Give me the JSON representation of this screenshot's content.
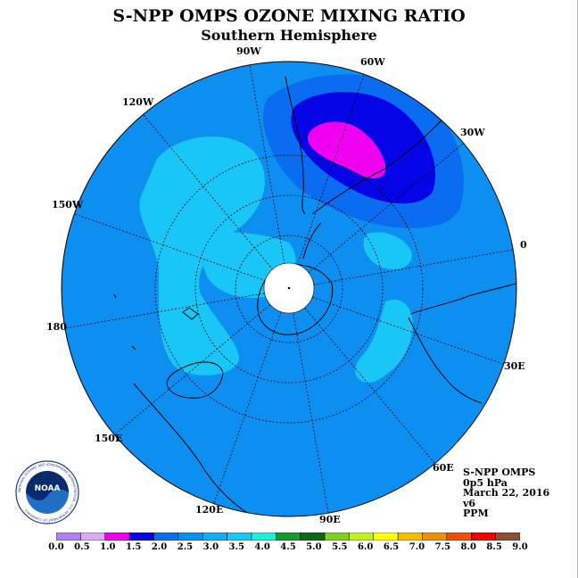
{
  "title": "S-NPP OMPS OZONE MIXING RATIO",
  "subtitle": "Southern Hemisphere",
  "longitude_labels": [
    "0",
    "30E",
    "60E",
    "90E",
    "120E",
    "150E",
    "180",
    "150W",
    "120W",
    "90W",
    "60W",
    "30W"
  ],
  "info": {
    "instrument": "S-NPP OMPS",
    "pressure": "0p5 hPa",
    "date": "March 22, 2016",
    "version": "v6",
    "units": "PPM"
  },
  "logo": {
    "text": "NOAA",
    "ring_text": "NATIONAL OCEANIC AND ATMOSPHERIC ADMINISTRATION · U.S. DEPARTMENT OF COMMERCE"
  },
  "colors": {
    "background_field": "#0d8ff2",
    "field_light": "#18c7f7",
    "field_mid": "#0a6cf0",
    "field_dark": "#0404e6",
    "field_max": "#f000f0",
    "pole": "#ffffff"
  },
  "colorbar": {
    "ticks": [
      "0.0",
      "0.5",
      "1.0",
      "1.5",
      "2.0",
      "2.5",
      "3.0",
      "3.5",
      "4.0",
      "4.5",
      "5.0",
      "5.5",
      "6.0",
      "6.5",
      "7.0",
      "7.5",
      "8.0",
      "8.5",
      "9.0"
    ],
    "colors": [
      "#b07ff0",
      "#dca8f0",
      "#f000f0",
      "#0404e6",
      "#0a6cf0",
      "#0d8ff2",
      "#10aef5",
      "#18c7f7",
      "#1cf0d8",
      "#139a2d",
      "#0a6a1a",
      "#80d020",
      "#c0f020",
      "#ffff00",
      "#f0c000",
      "#f09000",
      "#f05000",
      "#f00000",
      "#8a5030"
    ]
  }
}
